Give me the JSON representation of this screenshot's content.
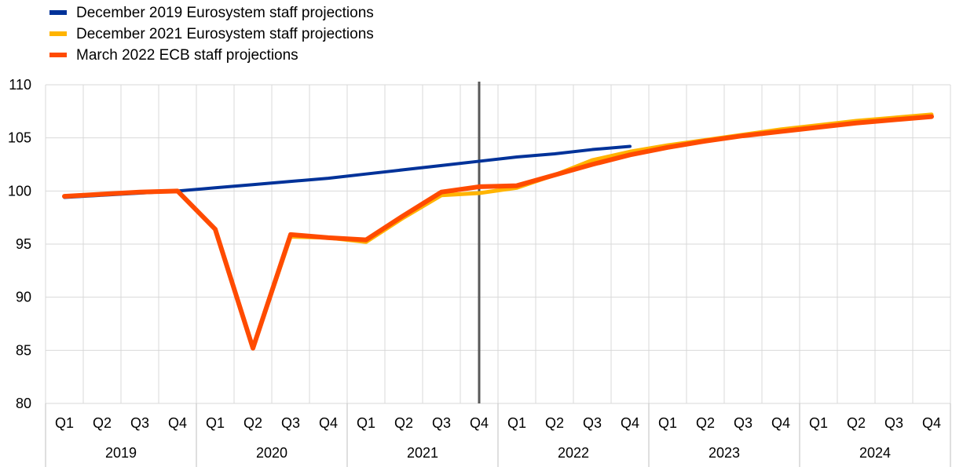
{
  "chart_data": {
    "type": "line",
    "title": "",
    "xlabel": "",
    "ylabel": "",
    "ylim": [
      80,
      110
    ],
    "yticks": [
      80,
      85,
      90,
      95,
      100,
      105,
      110
    ],
    "grid": true,
    "legend_position": "top-left",
    "quarters": [
      "Q1",
      "Q2",
      "Q3",
      "Q4",
      "Q1",
      "Q2",
      "Q3",
      "Q4",
      "Q1",
      "Q2",
      "Q3",
      "Q4",
      "Q1",
      "Q2",
      "Q3",
      "Q4",
      "Q1",
      "Q2",
      "Q3",
      "Q4",
      "Q1",
      "Q2",
      "Q3",
      "Q4"
    ],
    "years": [
      "2019",
      "2020",
      "2021",
      "2022",
      "2023",
      "2024"
    ],
    "vertical_marker_after": "2021 Q4",
    "series": [
      {
        "name": "December 2019 Eurosystem staff projections",
        "color": "#003299",
        "values": [
          99.4,
          99.6,
          99.8,
          100.0,
          100.3,
          100.6,
          100.9,
          101.2,
          101.6,
          102.0,
          102.4,
          102.8,
          103.2,
          103.5,
          103.9,
          104.2,
          null,
          null,
          null,
          null,
          null,
          null,
          null,
          null
        ]
      },
      {
        "name": "December 2021 Eurosystem staff projections",
        "color": "#FFB400",
        "values": [
          99.5,
          99.7,
          99.9,
          100.0,
          96.4,
          85.2,
          95.7,
          95.6,
          95.2,
          97.5,
          99.6,
          99.8,
          100.3,
          101.5,
          102.9,
          103.7,
          104.3,
          104.8,
          105.3,
          105.8,
          106.2,
          106.6,
          106.9,
          107.2
        ]
      },
      {
        "name": "March 2022 ECB staff projections",
        "color": "#FF4B00",
        "values": [
          99.5,
          99.7,
          99.9,
          100.0,
          96.4,
          85.2,
          95.9,
          95.6,
          95.4,
          97.7,
          99.9,
          100.4,
          100.5,
          101.5,
          102.5,
          103.4,
          104.1,
          104.7,
          105.2,
          105.6,
          106.0,
          106.4,
          106.7,
          107.0
        ]
      }
    ]
  }
}
